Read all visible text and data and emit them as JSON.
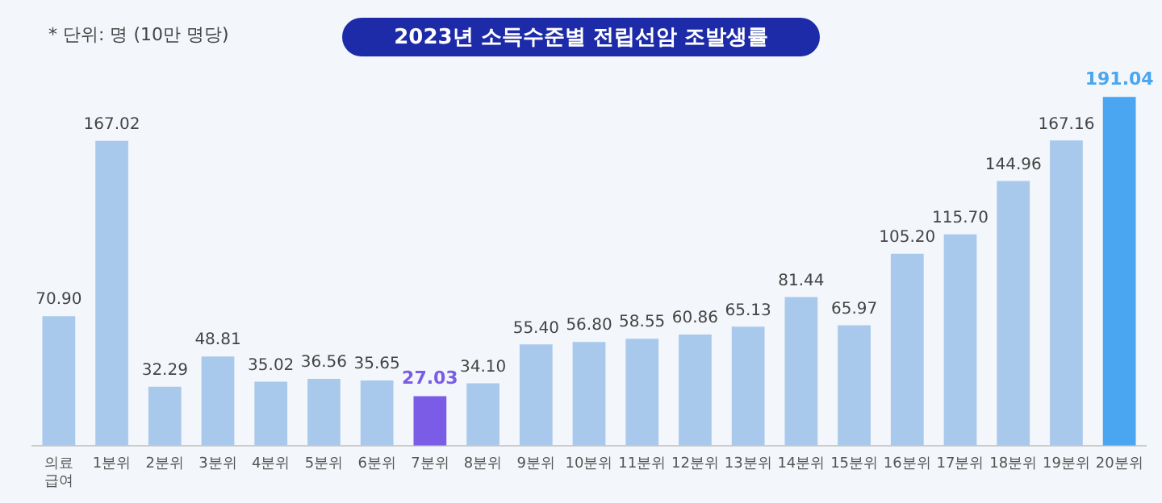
{
  "chart_data": {
    "type": "bar",
    "title": "2023년 소득수준별 전립선암 조발생률",
    "annotations": [
      "* 단위: 명 (10만 명당)"
    ],
    "categories": [
      "의료 급여",
      "1분위",
      "2분위",
      "3분위",
      "4분위",
      "5분위",
      "6분위",
      "7분위",
      "8분위",
      "9분위",
      "10분위",
      "11분위",
      "12분위",
      "13분위",
      "14분위",
      "15분위",
      "16분위",
      "17분위",
      "18분위",
      "19분위",
      "20분위"
    ],
    "values": [
      70.9,
      167.02,
      32.29,
      48.81,
      35.02,
      36.56,
      35.65,
      27.03,
      34.1,
      55.4,
      56.8,
      58.55,
      60.86,
      65.13,
      81.44,
      65.97,
      105.2,
      115.7,
      144.96,
      167.16,
      191.04
    ],
    "color": "#a9c9ec",
    "colors": [
      "#a9c9ec",
      "#a9c9ec",
      "#a9c9ec",
      "#a9c9ec",
      "#a9c9ec",
      "#a9c9ec",
      "#a9c9ec",
      "#7a5ce6",
      "#a9c9ec",
      "#a9c9ec",
      "#a9c9ec",
      "#a9c9ec",
      "#a9c9ec",
      "#a9c9ec",
      "#a9c9ec",
      "#a9c9ec",
      "#a9c9ec",
      "#a9c9ec",
      "#a9c9ec",
      "#a9c9ec",
      "#4aa6f0"
    ],
    "value_labels": [
      "70.90",
      "167.02",
      "32.29",
      "48.81",
      "35.02",
      "36.56",
      "35.65",
      "27.03",
      "34.10",
      "55.40",
      "56.80",
      "58.55",
      "60.86",
      "65.13",
      "81.44",
      "65.97",
      "105.20",
      "115.70",
      "144.96",
      "167.16",
      "191.04"
    ],
    "grid": false,
    "legend": false
  }
}
